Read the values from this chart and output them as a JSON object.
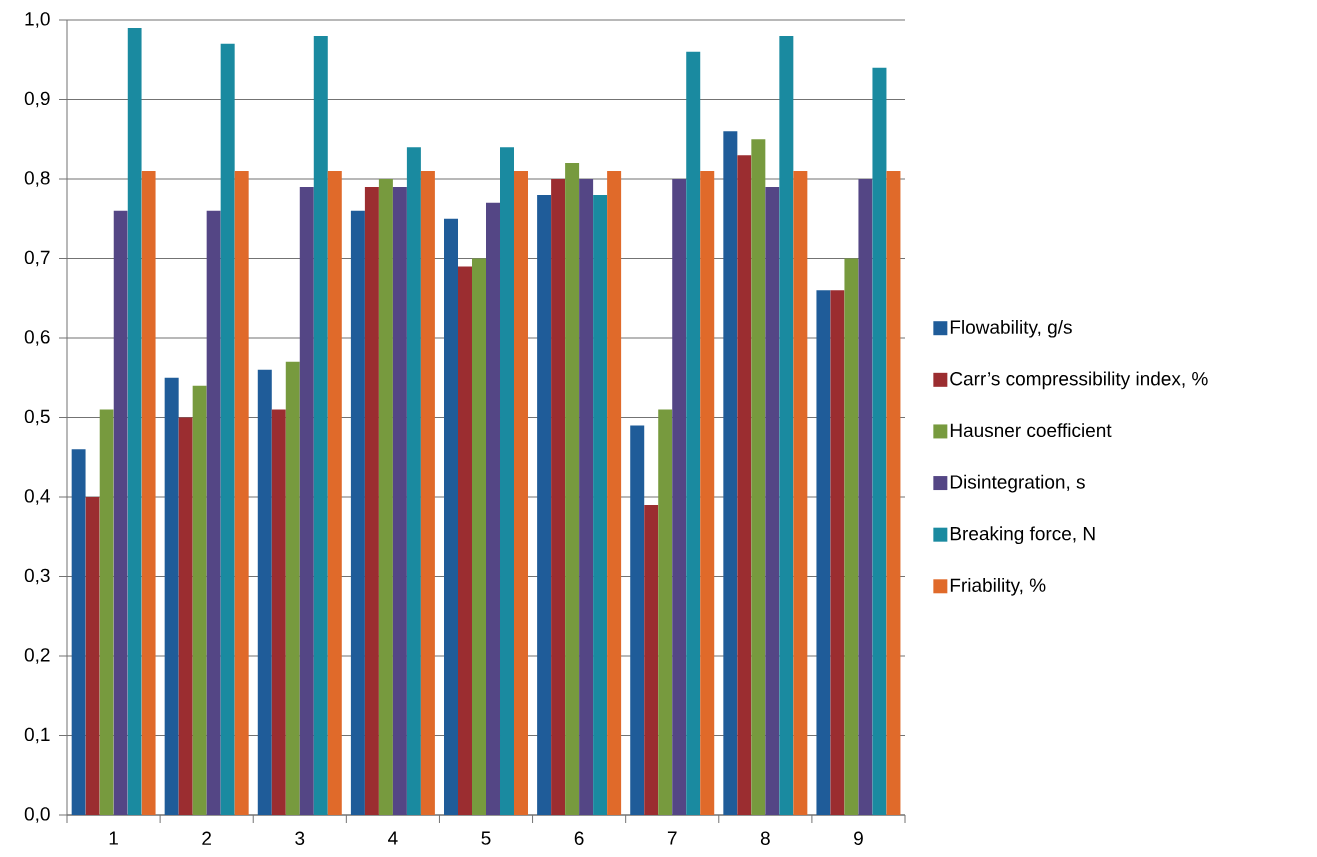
{
  "chart_data": {
    "type": "bar",
    "categories": [
      "1",
      "2",
      "3",
      "4",
      "5",
      "6",
      "7",
      "8",
      "9"
    ],
    "series": [
      {
        "name": "Flowability, g/s",
        "color": "#1f5c99",
        "values": [
          0.46,
          0.55,
          0.56,
          0.76,
          0.75,
          0.78,
          0.49,
          0.86,
          0.66
        ]
      },
      {
        "name": "Carr’s compressibility index, %",
        "color": "#9b2d30",
        "values": [
          0.4,
          0.5,
          0.51,
          0.79,
          0.69,
          0.8,
          0.39,
          0.83,
          0.66
        ]
      },
      {
        "name": "Hausner coefficient",
        "color": "#779a3e",
        "values": [
          0.51,
          0.54,
          0.57,
          0.8,
          0.7,
          0.82,
          0.51,
          0.85,
          0.7
        ]
      },
      {
        "name": "Disintegration, s",
        "color": "#544685",
        "values": [
          0.76,
          0.76,
          0.79,
          0.79,
          0.77,
          0.8,
          0.8,
          0.79,
          0.8
        ]
      },
      {
        "name": "Breaking force, N",
        "color": "#1a8aa0",
        "values": [
          0.99,
          0.97,
          0.98,
          0.84,
          0.84,
          0.78,
          0.96,
          0.98,
          0.94
        ]
      },
      {
        "name": "Friability, %",
        "color": "#e06a2a",
        "values": [
          0.81,
          0.81,
          0.81,
          0.81,
          0.81,
          0.81,
          0.81,
          0.81,
          0.81
        ]
      }
    ],
    "ylim": [
      0,
      1
    ],
    "yticks": [
      {
        "value": 0,
        "label": "0,0"
      },
      {
        "value": 0.1,
        "label": "0,1"
      },
      {
        "value": 0.2,
        "label": "0,2"
      },
      {
        "value": 0.3,
        "label": "0,3"
      },
      {
        "value": 0.4,
        "label": "0,4"
      },
      {
        "value": 0.5,
        "label": "0,5"
      },
      {
        "value": 0.6,
        "label": "0,6"
      },
      {
        "value": 0.7,
        "label": "0,7"
      },
      {
        "value": 0.8,
        "label": "0,8"
      },
      {
        "value": 0.9,
        "label": "0,9"
      },
      {
        "value": 1.0,
        "label": "1,0"
      }
    ],
    "grid": "y",
    "legend": "right"
  }
}
